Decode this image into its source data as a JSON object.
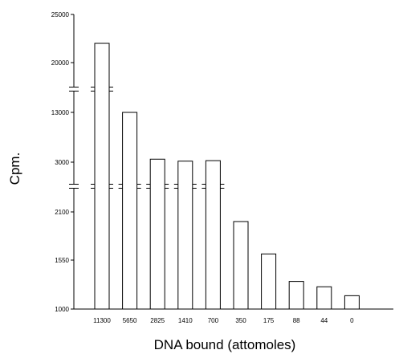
{
  "chart_data": {
    "type": "bar",
    "title": "",
    "xlabel": "DNA bound (attomoles)",
    "ylabel": "Cpm.",
    "y_axis": "broken",
    "y_ticks": [
      "1000",
      "1550",
      "2100",
      "3000",
      "13000",
      "20000",
      "25000"
    ],
    "categories": [
      "11300",
      "5650",
      "2825",
      "1410",
      "700",
      "350",
      "175",
      "88",
      "44",
      "0"
    ],
    "values": [
      22000,
      13000,
      3600,
      3200,
      3300,
      1990,
      1620,
      1310,
      1250,
      1150
    ],
    "legend": "none",
    "grid": false,
    "bar_fill": "#ffffff",
    "bar_stroke": "#000000"
  }
}
